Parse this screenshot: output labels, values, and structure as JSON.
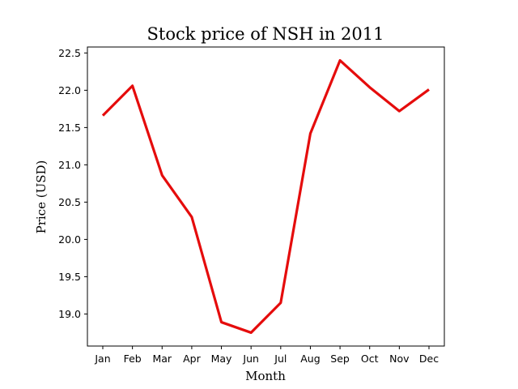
{
  "chart_data": {
    "type": "line",
    "title": "Stock price of NSH in 2011",
    "xlabel": "Month",
    "ylabel": "Price (USD)",
    "categories": [
      "Jan",
      "Feb",
      "Mar",
      "Apr",
      "May",
      "Jun",
      "Jul",
      "Aug",
      "Sep",
      "Oct",
      "Nov",
      "Dec"
    ],
    "series": [
      {
        "color": "#e50c0c",
        "values": [
          21.66,
          22.06,
          20.86,
          20.3,
          18.89,
          18.75,
          19.15,
          21.42,
          22.4,
          22.04,
          21.72,
          22.01
        ]
      }
    ],
    "ylim": [
      18.57,
      22.58
    ],
    "yticks": [
      19.0,
      19.5,
      20.0,
      20.5,
      21.0,
      21.5,
      22.0,
      22.5
    ],
    "ytick_labels": [
      "19.0",
      "19.5",
      "20.0",
      "20.5",
      "21.0",
      "21.5",
      "22.0",
      "22.5"
    ],
    "grid": false,
    "legend": "none"
  }
}
